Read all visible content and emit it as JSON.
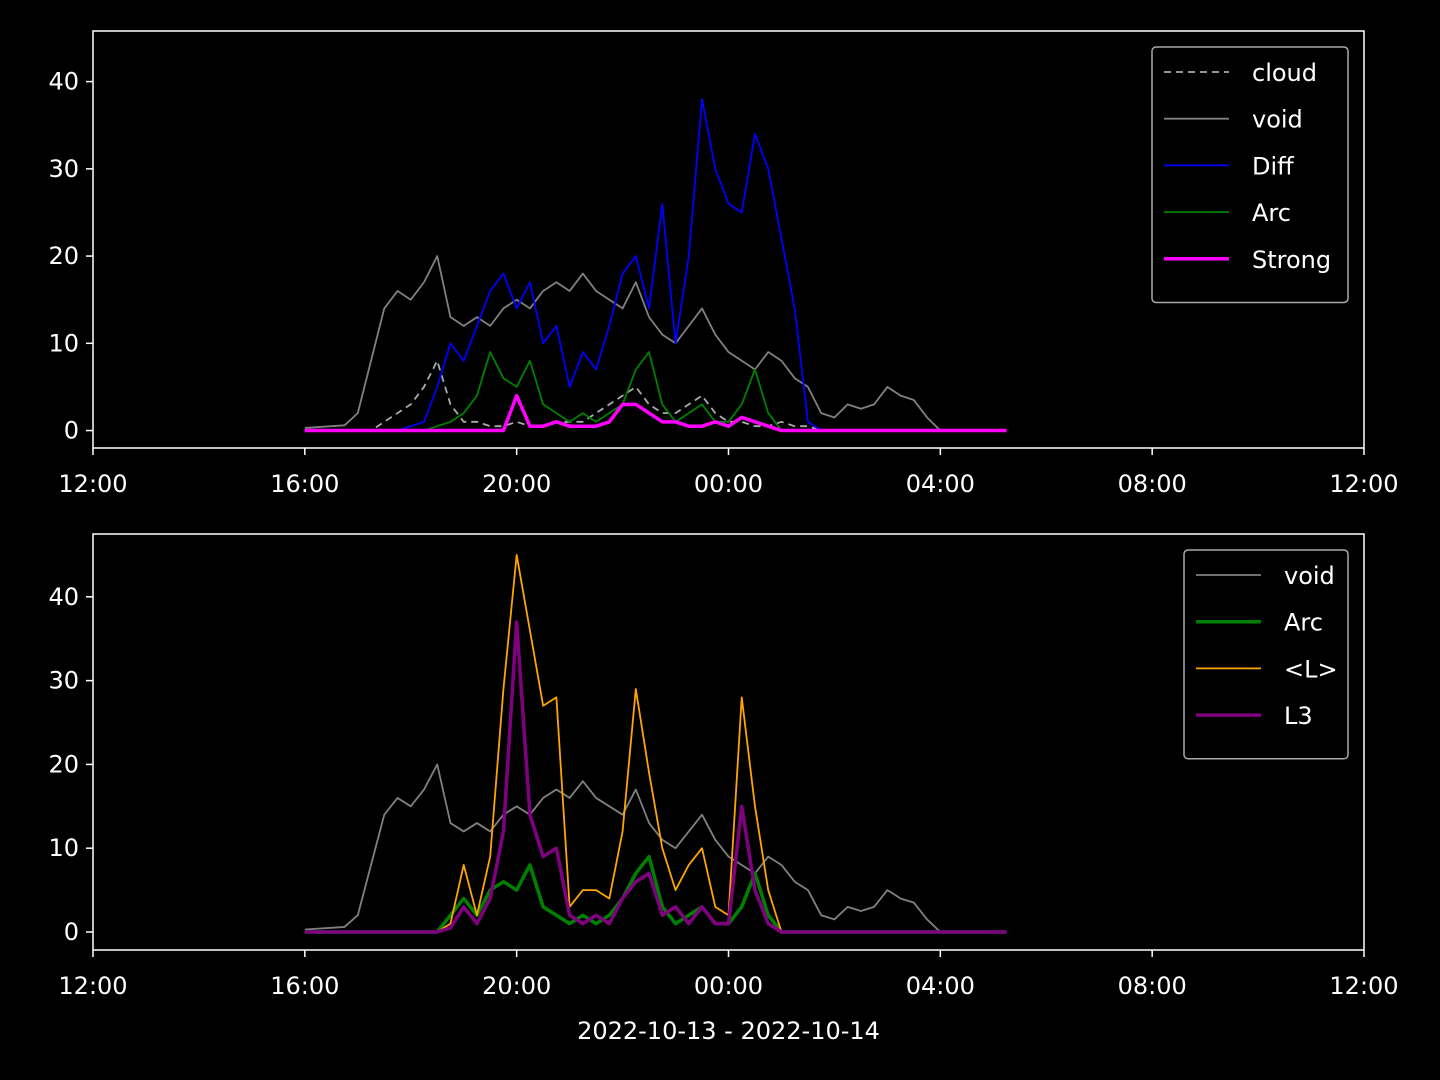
{
  "chart_data": [
    {
      "type": "line",
      "x": [
        "2022-10-13 16:00",
        "2022-10-13 16:15",
        "2022-10-13 16:30",
        "2022-10-13 16:45",
        "2022-10-13 17:00",
        "2022-10-13 17:15",
        "2022-10-13 17:30",
        "2022-10-13 17:45",
        "2022-10-13 18:00",
        "2022-10-13 18:15",
        "2022-10-13 18:30",
        "2022-10-13 18:45",
        "2022-10-13 19:00",
        "2022-10-13 19:15",
        "2022-10-13 19:30",
        "2022-10-13 19:45",
        "2022-10-13 20:00",
        "2022-10-13 20:15",
        "2022-10-13 20:30",
        "2022-10-13 20:45",
        "2022-10-13 21:00",
        "2022-10-13 21:15",
        "2022-10-13 21:30",
        "2022-10-13 21:45",
        "2022-10-13 22:00",
        "2022-10-13 22:15",
        "2022-10-13 22:30",
        "2022-10-13 22:45",
        "2022-10-13 23:00",
        "2022-10-13 23:15",
        "2022-10-13 23:30",
        "2022-10-13 23:45",
        "2022-10-14 00:00",
        "2022-10-14 00:15",
        "2022-10-14 00:30",
        "2022-10-14 00:45",
        "2022-10-14 01:00",
        "2022-10-14 01:15",
        "2022-10-14 01:30",
        "2022-10-14 01:45",
        "2022-10-14 02:00",
        "2022-10-14 02:15",
        "2022-10-14 02:30",
        "2022-10-14 02:45",
        "2022-10-14 03:00",
        "2022-10-14 03:15",
        "2022-10-14 03:30",
        "2022-10-14 03:45",
        "2022-10-14 04:00",
        "2022-10-14 04:15",
        "2022-10-14 04:30",
        "2022-10-14 04:45",
        "2022-10-14 05:00",
        "2022-10-14 05:15"
      ],
      "series": [
        {
          "name": "cloud",
          "color": "#aaaaaa",
          "linestyle": "dashed",
          "values": [
            0,
            0,
            0,
            0,
            0,
            0,
            1,
            2,
            3,
            5,
            8,
            3,
            1,
            1,
            0.5,
            0.5,
            1,
            0.5,
            0.5,
            1,
            1,
            1,
            2,
            3,
            4,
            5,
            3,
            2,
            2,
            3,
            4,
            2,
            1,
            1,
            0.5,
            0.5,
            1,
            0.5,
            0.5,
            0,
            0,
            0,
            0,
            0,
            0,
            0,
            0,
            0,
            0,
            0,
            0,
            0,
            0,
            0
          ]
        },
        {
          "name": "void",
          "color": "#808080",
          "linestyle": "solid",
          "values": [
            0.3,
            0.4,
            0.5,
            0.6,
            2,
            8,
            14,
            16,
            15,
            17,
            20,
            13,
            12,
            13,
            12,
            14,
            15,
            14,
            16,
            17,
            16,
            18,
            16,
            15,
            14,
            17,
            13,
            11,
            10,
            12,
            14,
            11,
            9,
            8,
            7,
            9,
            8,
            6,
            5,
            2,
            1.5,
            3,
            2.5,
            3,
            5,
            4,
            3.5,
            1.5,
            0,
            0,
            0,
            0,
            0,
            0
          ]
        },
        {
          "name": "Diff",
          "color": "#0000ff",
          "linestyle": "solid",
          "values": [
            0,
            0,
            0,
            0,
            0,
            0,
            0,
            0,
            0.5,
            1,
            5,
            10,
            8,
            12,
            16,
            18,
            14,
            17,
            10,
            12,
            5,
            9,
            7,
            12,
            18,
            20,
            14,
            26,
            10,
            20,
            38,
            30,
            26,
            25,
            34,
            30,
            22,
            14,
            1,
            0,
            0,
            0,
            0,
            0,
            0,
            0,
            0,
            0,
            0,
            0,
            0,
            0,
            0,
            0
          ]
        },
        {
          "name": "Arc",
          "color": "#008000",
          "linestyle": "solid",
          "values": [
            0,
            0,
            0,
            0,
            0,
            0,
            0,
            0,
            0,
            0,
            0.5,
            1,
            2,
            4,
            9,
            6,
            5,
            8,
            3,
            2,
            1,
            2,
            1,
            2,
            3,
            7,
            9,
            3,
            1,
            2,
            3,
            1,
            1,
            3,
            7,
            2,
            0,
            0,
            0,
            0,
            0,
            0,
            0,
            0,
            0,
            0,
            0,
            0,
            0,
            0,
            0,
            0,
            0,
            0
          ]
        },
        {
          "name": "Strong",
          "color": "#ff00ff",
          "linestyle": "thick",
          "values": [
            0,
            0,
            0,
            0,
            0,
            0,
            0,
            0,
            0,
            0,
            0,
            0,
            0,
            0,
            0,
            0,
            4,
            0.5,
            0.5,
            1,
            0.5,
            0.5,
            0.5,
            1,
            3,
            3,
            2,
            1,
            1,
            0.5,
            0.5,
            1,
            0.5,
            1.5,
            1,
            0.5,
            0,
            0,
            0,
            0,
            0,
            0,
            0,
            0,
            0,
            0,
            0,
            0,
            0,
            0,
            0,
            0,
            0,
            0
          ]
        }
      ],
      "xlim": [
        "2022-10-13 12:00",
        "2022-10-14 12:00"
      ],
      "xticks": [
        {
          "value": "2022-10-13 12:00",
          "label": "12:00"
        },
        {
          "value": "2022-10-13 16:00",
          "label": "16:00"
        },
        {
          "value": "2022-10-13 20:00",
          "label": "20:00"
        },
        {
          "value": "2022-10-14 00:00",
          "label": "00:00"
        },
        {
          "value": "2022-10-14 04:00",
          "label": "04:00"
        },
        {
          "value": "2022-10-14 08:00",
          "label": "08:00"
        },
        {
          "value": "2022-10-14 12:00",
          "label": "12:00"
        }
      ],
      "ylim": [
        -2,
        45.8
      ],
      "yticks": [
        0,
        10,
        20,
        30,
        40
      ],
      "legend": "upper right"
    },
    {
      "type": "line",
      "x": [
        "2022-10-13 16:00",
        "2022-10-13 16:15",
        "2022-10-13 16:30",
        "2022-10-13 16:45",
        "2022-10-13 17:00",
        "2022-10-13 17:15",
        "2022-10-13 17:30",
        "2022-10-13 17:45",
        "2022-10-13 18:00",
        "2022-10-13 18:15",
        "2022-10-13 18:30",
        "2022-10-13 18:45",
        "2022-10-13 19:00",
        "2022-10-13 19:15",
        "2022-10-13 19:30",
        "2022-10-13 19:45",
        "2022-10-13 20:00",
        "2022-10-13 20:15",
        "2022-10-13 20:30",
        "2022-10-13 20:45",
        "2022-10-13 21:00",
        "2022-10-13 21:15",
        "2022-10-13 21:30",
        "2022-10-13 21:45",
        "2022-10-13 22:00",
        "2022-10-13 22:15",
        "2022-10-13 22:30",
        "2022-10-13 22:45",
        "2022-10-13 23:00",
        "2022-10-13 23:15",
        "2022-10-13 23:30",
        "2022-10-13 23:45",
        "2022-10-14 00:00",
        "2022-10-14 00:15",
        "2022-10-14 00:30",
        "2022-10-14 00:45",
        "2022-10-14 01:00",
        "2022-10-14 01:15",
        "2022-10-14 01:30",
        "2022-10-14 01:45",
        "2022-10-14 02:00",
        "2022-10-14 02:15",
        "2022-10-14 02:30",
        "2022-10-14 02:45",
        "2022-10-14 03:00",
        "2022-10-14 03:15",
        "2022-10-14 03:30",
        "2022-10-14 03:45",
        "2022-10-14 04:00",
        "2022-10-14 04:15",
        "2022-10-14 04:30",
        "2022-10-14 04:45",
        "2022-10-14 05:00",
        "2022-10-14 05:15"
      ],
      "series": [
        {
          "name": "void",
          "color": "#808080",
          "linestyle": "solid",
          "values": [
            0.3,
            0.4,
            0.5,
            0.6,
            2,
            8,
            14,
            16,
            15,
            17,
            20,
            13,
            12,
            13,
            12,
            14,
            15,
            14,
            16,
            17,
            16,
            18,
            16,
            15,
            14,
            17,
            13,
            11,
            10,
            12,
            14,
            11,
            9,
            8,
            7,
            9,
            8,
            6,
            5,
            2,
            1.5,
            3,
            2.5,
            3,
            5,
            4,
            3.5,
            1.5,
            0,
            0,
            0,
            0,
            0,
            0
          ]
        },
        {
          "name": "Arc",
          "color": "#008000",
          "linestyle": "thick",
          "values": [
            0,
            0,
            0,
            0,
            0,
            0,
            0,
            0,
            0,
            0,
            0,
            2,
            4,
            2,
            5,
            6,
            5,
            8,
            3,
            2,
            1,
            2,
            1,
            2,
            4,
            7,
            9,
            3,
            1,
            2,
            3,
            1,
            1,
            3,
            7,
            2,
            0,
            0,
            0,
            0,
            0,
            0,
            0,
            0,
            0,
            0,
            0,
            0,
            0,
            0,
            0,
            0,
            0,
            0
          ]
        },
        {
          "name": "<L>",
          "color": "#ffa500",
          "linestyle": "solid",
          "values": [
            0,
            0,
            0,
            0,
            0,
            0,
            0,
            0,
            0,
            0,
            0,
            1,
            8,
            2,
            9,
            29,
            45,
            36,
            27,
            28,
            3,
            5,
            5,
            4,
            12,
            29,
            19,
            10,
            5,
            8,
            10,
            3,
            2,
            28,
            15,
            5,
            0,
            0,
            0,
            0,
            0,
            0,
            0,
            0,
            0,
            0,
            0,
            0,
            0,
            0,
            0,
            0,
            0,
            0
          ]
        },
        {
          "name": "L3",
          "color": "#800080",
          "linestyle": "thick",
          "values": [
            0,
            0,
            0,
            0,
            0,
            0,
            0,
            0,
            0,
            0,
            0,
            0.5,
            3,
            1,
            4,
            12,
            37,
            14,
            9,
            10,
            2,
            1,
            2,
            1,
            4,
            6,
            7,
            2,
            3,
            1,
            3,
            1,
            1,
            15,
            5,
            1,
            0,
            0,
            0,
            0,
            0,
            0,
            0,
            0,
            0,
            0,
            0,
            0,
            0,
            0,
            0,
            0,
            0,
            0
          ]
        }
      ],
      "xlim": [
        "2022-10-13 12:00",
        "2022-10-14 12:00"
      ],
      "xticks": [
        {
          "value": "2022-10-13 12:00",
          "label": "12:00"
        },
        {
          "value": "2022-10-13 16:00",
          "label": "16:00"
        },
        {
          "value": "2022-10-13 20:00",
          "label": "20:00"
        },
        {
          "value": "2022-10-14 00:00",
          "label": "00:00"
        },
        {
          "value": "2022-10-14 04:00",
          "label": "04:00"
        },
        {
          "value": "2022-10-14 08:00",
          "label": "08:00"
        },
        {
          "value": "2022-10-14 12:00",
          "label": "12:00"
        }
      ],
      "ylim": [
        -2.15,
        47.5
      ],
      "yticks": [
        0,
        10,
        20,
        30,
        40
      ],
      "xlabel": "2022-10-13 - 2022-10-14",
      "legend": "upper right"
    }
  ]
}
